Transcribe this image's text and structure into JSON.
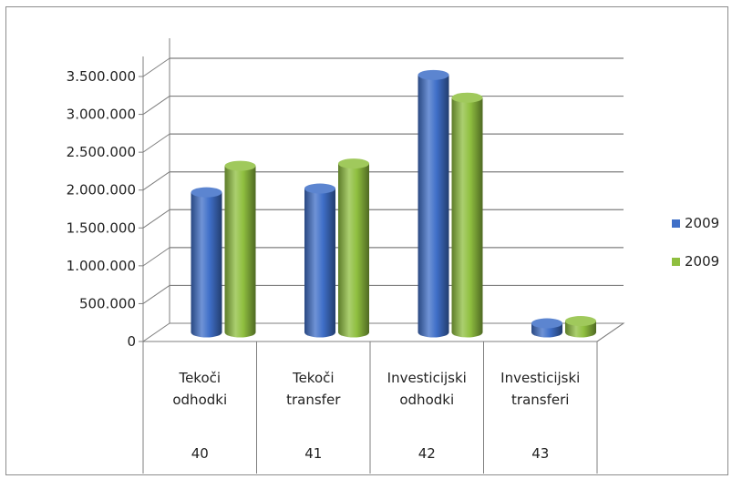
{
  "chart_data": {
    "type": "bar",
    "title": "",
    "xlabel": "",
    "ylabel": "",
    "ylim": [
      0,
      3500000
    ],
    "y_ticks": [
      "0",
      "500.000",
      "1.000.000",
      "1.500.000",
      "2.000.000",
      "2.500.000",
      "3.000.000",
      "3.500.000"
    ],
    "categories": [
      {
        "lines": [
          "Tekoči",
          "odhodki"
        ],
        "code": "40"
      },
      {
        "lines": [
          "Tekoči",
          "transfer"
        ],
        "code": "41"
      },
      {
        "lines": [
          "Investicijski",
          "odhodki"
        ],
        "code": "42"
      },
      {
        "lines": [
          "Investicijski",
          "transferi"
        ],
        "code": "43"
      }
    ],
    "series": [
      {
        "name": "2009",
        "color": "#3f6fc8",
        "values": [
          1850000,
          1900000,
          3400000,
          120000
        ]
      },
      {
        "name": "2009",
        "color": "#8fbf3f",
        "values": [
          2200000,
          2230000,
          3100000,
          150000
        ]
      }
    ],
    "grid": true,
    "legend": "right",
    "style": "3d-cylinder"
  }
}
